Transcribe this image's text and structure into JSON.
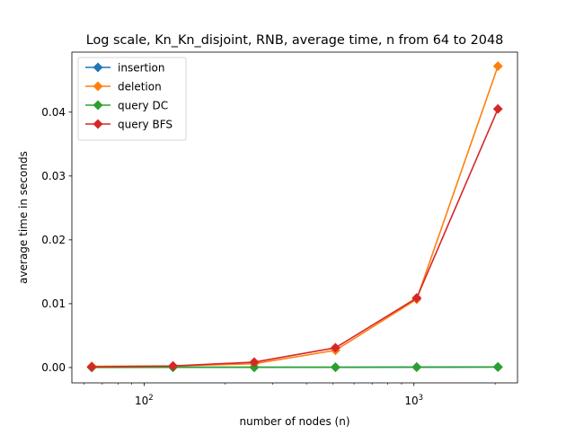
{
  "chart_data": {
    "type": "line",
    "title": "Log scale, Kn_Kn_disjoint, RNB, average time, n from 64 to 2048",
    "xlabel": "number of nodes (n)",
    "ylabel": "average time in seconds",
    "xscale": "log",
    "xlim": [
      54,
      2420
    ],
    "ylim": [
      -0.0024,
      0.0494
    ],
    "x": [
      64,
      128,
      256,
      512,
      1024,
      2048
    ],
    "x_major_ticks": [
      {
        "value": 100,
        "base": "10",
        "exp": "2"
      },
      {
        "value": 1000,
        "base": "10",
        "exp": "3"
      }
    ],
    "y_ticks": [
      {
        "value": 0.0,
        "label": "0.00"
      },
      {
        "value": 0.01,
        "label": "0.01"
      },
      {
        "value": 0.02,
        "label": "0.02"
      },
      {
        "value": 0.03,
        "label": "0.03"
      },
      {
        "value": 0.04,
        "label": "0.04"
      }
    ],
    "grid": false,
    "legend_position": "upper-left",
    "series": [
      {
        "name": "insertion",
        "color": "#1f77b4",
        "marker": "diamond",
        "values": [
          3e-05,
          5e-05,
          5e-05,
          6e-05,
          8e-05,
          0.0001
        ]
      },
      {
        "name": "deletion",
        "color": "#ff7f0e",
        "marker": "diamond",
        "values": [
          0.0002,
          0.00025,
          0.0006,
          0.0027,
          0.0107,
          0.0472
        ]
      },
      {
        "name": "query DC",
        "color": "#2ca02c",
        "marker": "diamond",
        "values": [
          2e-05,
          3e-05,
          3e-05,
          4e-05,
          5e-05,
          7e-05
        ]
      },
      {
        "name": "query BFS",
        "color": "#d62728",
        "marker": "diamond",
        "values": [
          0.0001,
          0.00025,
          0.00085,
          0.0031,
          0.0109,
          0.0405
        ]
      }
    ]
  }
}
